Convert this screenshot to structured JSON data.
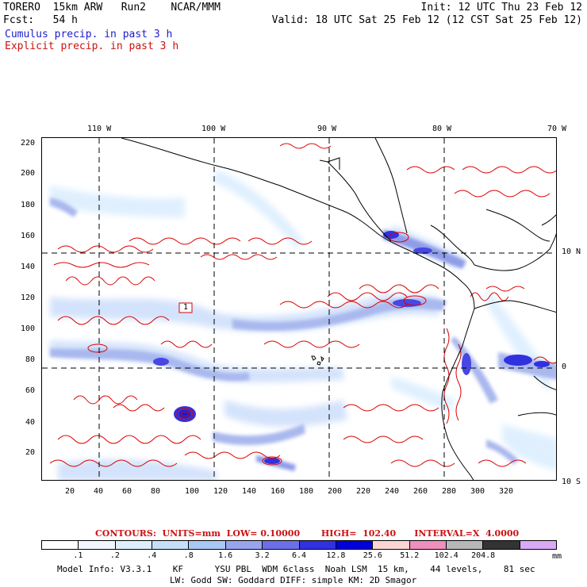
{
  "header": {
    "model_line": "TORERO  15km ARW   Run2    NCAR/MMM",
    "fcst_line": "Fcst:   54 h",
    "init_line": "Init: 12 UTC Thu 23 Feb 12",
    "valid_line": "Valid: 18 UTC Sat 25 Feb 12 (12 CST Sat 25 Feb 12)"
  },
  "legend": {
    "cumulus": "Cumulus precip. in past 3 h",
    "explicit": "Explicit precip. in past 3 h"
  },
  "map": {
    "top_lon_labels": [
      "110 W",
      "100 W",
      "90 W",
      "80 W",
      "70 W"
    ],
    "right_lat_labels": [
      "10 N",
      "0",
      "10 S"
    ],
    "y_grid_labels": [
      "220",
      "200",
      "180",
      "160",
      "140",
      "120",
      "100",
      "80",
      "60",
      "40",
      "20"
    ],
    "x_grid_labels": [
      "20",
      "40",
      "60",
      "80",
      "100",
      "120",
      "140",
      "160",
      "180",
      "200",
      "220",
      "240",
      "260",
      "280",
      "300",
      "320"
    ],
    "low_marker": "1",
    "colors": {
      "coast": "#000000",
      "contour": "#dd0000",
      "light": "#dceefe",
      "mid": "#a9b8ee",
      "deep": "#2222ee"
    }
  },
  "contour_info": {
    "units_text": "CONTOURS:  UNITS=mm  LOW= 0.10000       HIGH=  102.40      INTERVAL=X  4.0000"
  },
  "colorbar": {
    "colors": [
      "#ffffff",
      "#f1f6fd",
      "#dfeefb",
      "#c6def7",
      "#a9c9f2",
      "#9aa4ee",
      "#6d6fe8",
      "#3131e0",
      "#0000d8",
      "#fbd4d4",
      "#ee8fbc",
      "#b7b7b7",
      "#333333",
      "#d9a9f5"
    ],
    "labels": [
      ".1",
      ".2",
      ".4",
      ".8",
      "1.6",
      "3.2",
      "6.4",
      "12.8",
      "25.6",
      "51.2",
      "102.4",
      "204.8"
    ],
    "unit": "mm"
  },
  "footer": {
    "line1": "Model Info: V3.3.1    KF      YSU PBL  WDM 6class  Noah LSM  15 km,    44 levels,    81 sec",
    "line2": "LW: Godd SW: Goddard DIFF: simple KM: 2D Smagor"
  }
}
